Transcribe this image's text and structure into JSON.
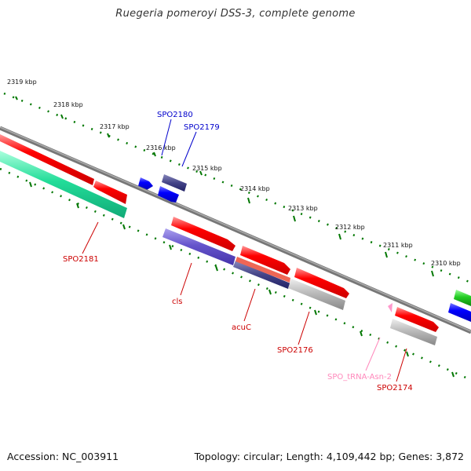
{
  "title": "Ruegeria pomeroyi DSS-3, complete genome",
  "footer": {
    "accession": "Accession: NC_003911",
    "summary": "Topology: circular; Length: 4,109,442 bp; Genes: 3,872"
  },
  "tick_labels": [
    "2319 kbp",
    "2318 kbp",
    "2317 kbp",
    "2316 kbp",
    "2315 kbp",
    "2314 kbp",
    "2313 kbp",
    "2312 kbp",
    "2311 kbp",
    "2310 kbp"
  ],
  "gene_labels": {
    "spo2180": "SPO2180",
    "spo2179": "SPO2179",
    "spo2181": "SPO2181",
    "cls": "cls",
    "acuc": "acuC",
    "spo2176": "SPO2176",
    "trna": "SPO_tRNA-Asn-2",
    "spo2174": "SPO2174"
  },
  "colors": {
    "cds": "#ff0000",
    "small_blue": "#0000ff",
    "purple": "#6655cc",
    "navy": "#333399",
    "aqua": "#22cc99",
    "grey": "#aaaaaa",
    "green": "#22cc22",
    "trna_pink": "#ff99cc",
    "label_red": "#cc0000",
    "label_blue": "#0000cc",
    "label_pink": "#ff88bb",
    "tick_green": "#007700",
    "backbone": "#888888"
  }
}
